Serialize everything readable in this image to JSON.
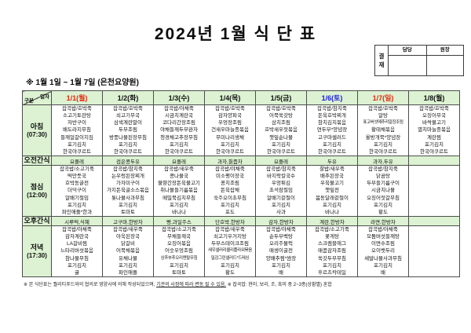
{
  "title": "2024년 1월 식 단 표",
  "subtitle": "※  1월 1일 ~ 1월 7일 (은천요양원)",
  "approval": {
    "label": "결재",
    "columns": [
      "담당",
      "원장"
    ]
  },
  "table": {
    "corner": {
      "top": "일자",
      "bottom": "구분"
    },
    "days": [
      {
        "label": "1/1(월)",
        "color": "#e8250c"
      },
      {
        "label": "1/2(화)",
        "color": "#111111"
      },
      {
        "label": "1/3(수)",
        "color": "#111111"
      },
      {
        "label": "1/4(목)",
        "color": "#111111"
      },
      {
        "label": "1/5(금)",
        "color": "#111111"
      },
      {
        "label": "1/6(토)",
        "color": "#1a1ae0"
      },
      {
        "label": "1/7(일)",
        "color": "#e8250c"
      },
      {
        "label": "1/8(월)",
        "color": "#111111"
      }
    ],
    "rows": [
      {
        "label": "아침",
        "time": "(07:30)",
        "type": "meal",
        "cells": [
          [
            "잡곡밥/호박죽",
            "소고기토란탕",
            "자반구이",
            "배도라지무침",
            "들깨얼갈이지짐",
            "포기김치",
            "한국야쿠르트"
          ],
          [
            "잡곡밥/호박죽",
            "쇠고기무국",
            "삼색계란말이",
            "두부조림",
            "방풍나물된장무침",
            "포기김치",
            "한국야쿠르트"
          ],
          [
            "잡곡밥/야채죽",
            "시금치계란국",
            "코다리간장조림",
            "야채들깨두부완자",
            "청경채고추장무침",
            "포기김치",
            "한국야쿠르트"
          ],
          [
            "잡곡밥/호박죽",
            "감자양파국",
            "우엉장조림",
            "건새우마늘종볶음",
            "무미나리생채",
            "포기김치",
            "한국야쿠르트"
          ],
          [
            "잡곡밥/호박죽",
            "어묵쑥갓탕",
            "삼치조림",
            "호박새우젓볶음",
            "깻잎순나물",
            "포기김치",
            "한국야쿠르트"
          ],
          [
            "잡곡밥/참치죽",
            "돈육호박찌개",
            "참치김치볶음",
            "연두부*양념장",
            "고구마샐러드",
            "포기김치",
            "한국야쿠르트"
          ],
          [
            "잡곡밥/호박죽",
            "알탕",
            "표고버섯메추리알장조림",
            "황태채볶음",
            "올방개묵*양념장",
            "포기김치",
            "한국야쿠르트"
          ],
          [
            "잡곡밥/호박죽",
            "오징어무국",
            "바싹불고기",
            "멸치마늘종볶음",
            "계란찜",
            "포기김치",
            "한국야쿠르트"
          ]
        ]
      },
      {
        "label": "오전간식",
        "time": "",
        "type": "snack",
        "cells": [
          "요플레",
          "검은콩두유",
          "요플레",
          "과자,칡즙차",
          "요플레",
          "두유",
          "과자,두유",
          ""
        ]
      },
      {
        "label": "점심",
        "time": "(12:00)",
        "type": "meal",
        "cells": [
          [
            "잡곡밥/소고기죽",
            "떡만둣국",
            "호박동글전",
            "더덕구이",
            "알배기절임",
            "포기김치",
            "파인애플*한과"
          ],
          [
            "잡곡밥/참치죽",
            "논우렁된장찌개",
            "가자미구이",
            "가지돈육굴소스볶음",
            "톳나물사과무침",
            "포기김치",
            "토마토"
          ],
          [
            "잡곡밥/새우죽",
            "콩나물국",
            "불향간장돈육불고기",
            "취나물들기름볶음",
            "메밀묵김치무침",
            "포기김치",
            "바나나"
          ],
          [
            "잡곡밥/야채죽",
            "미소팽이장국",
            "꽁치조림",
            "돈육잡채",
            "숙주오이초무침",
            "포기김치",
            "포도"
          ],
          [
            "잡곡밥/참치죽",
            "바지락칼국수",
            "우엉튀김",
            "초석잠절임",
            "알배기겉절이",
            "포기김치",
            "사과"
          ],
          [
            "찰밥/새우죽",
            "배추된장국",
            "우육불고기",
            "깻잎전",
            "봄동달래겉절이",
            "포기김치",
            "바나나"
          ],
          [
            "잡곡밥/참치죽",
            "닭곰탕",
            "두부들기름구이",
            "시금치나물",
            "오징어젓갈무침",
            "포기김치",
            "황도"
          ],
          []
        ]
      },
      {
        "label": "오후간식",
        "time": "",
        "type": "snack",
        "cells": [
          "시루떡,식혜",
          "고구마,한방차",
          "빵,과일주스",
          "단호박,한방차",
          "감자,한방차",
          "계란,한방차",
          "라면,한방차",
          ""
        ]
      },
      {
        "label": "저녁",
        "time": "(17:30)",
        "type": "meal",
        "cells": [
          [
            "잡곡밥/야채죽",
            "감자계란국",
            "LA갈비찜",
            "느타리버섯볶음",
            "참나물무침",
            "포기김치",
            "귤"
          ],
          [
            "잡곡밥/새우죽",
            "아욱된장국",
            "닭갈비",
            "어묵채볶음",
            "유채나물",
            "포기김치",
            "파인애플"
          ],
          [
            "잡곡밥/소고기죽",
            "무채들깨국",
            "오징어볶음",
            "어슷우엉조림",
            "상추부추오리엔탈무침",
            "포기김치",
            "토마토"
          ],
          [
            "잡곡밥/새우죽",
            "쇠고기우거지탕",
            "두부스테이크조림",
            "새우샐러리콜리플라워볶음",
            "밀감그린샐러드*드레싱",
            "포기김치",
            "황도"
          ],
          [
            "잡곡밥/야채죽",
            "순두부백탕",
            "오리주물럭",
            "매생이굴전",
            "양배추찜*쌈장",
            "포기김치",
            "배"
          ],
          [
            "잡곡밥/소고기죽",
            "꽃게탕",
            "스크램블에그",
            "매콤감자조림",
            "쑥갓두부무침",
            "포기김치",
            "후르츠칵테일"
          ],
          [
            "잡곡밥/야채죽",
            "모둠버섯들깨탕",
            "이면수조림",
            "오이뱃두리",
            "세발나물사과무침",
            "포기김치",
            "배"
          ],
          []
        ]
      }
    ]
  },
  "footnote": {
    "part1": "※ 본 식단표는 퀄리티푸드와의 협의로 영양사에 의해 작성되었으며, ",
    "underlined": "기관의 사정에 따라 변동 될 수 있음.",
    "part2": " ※ 잡곡밥: 현미, 보리, 조, 흑미 중 2~3종(상황별) 혼합"
  },
  "colors": {
    "header_green": "#dcf2d2",
    "grid_line": "#4d4d4d",
    "holiday_red": "#e8250c",
    "saturday_blue": "#1a1ae0"
  }
}
